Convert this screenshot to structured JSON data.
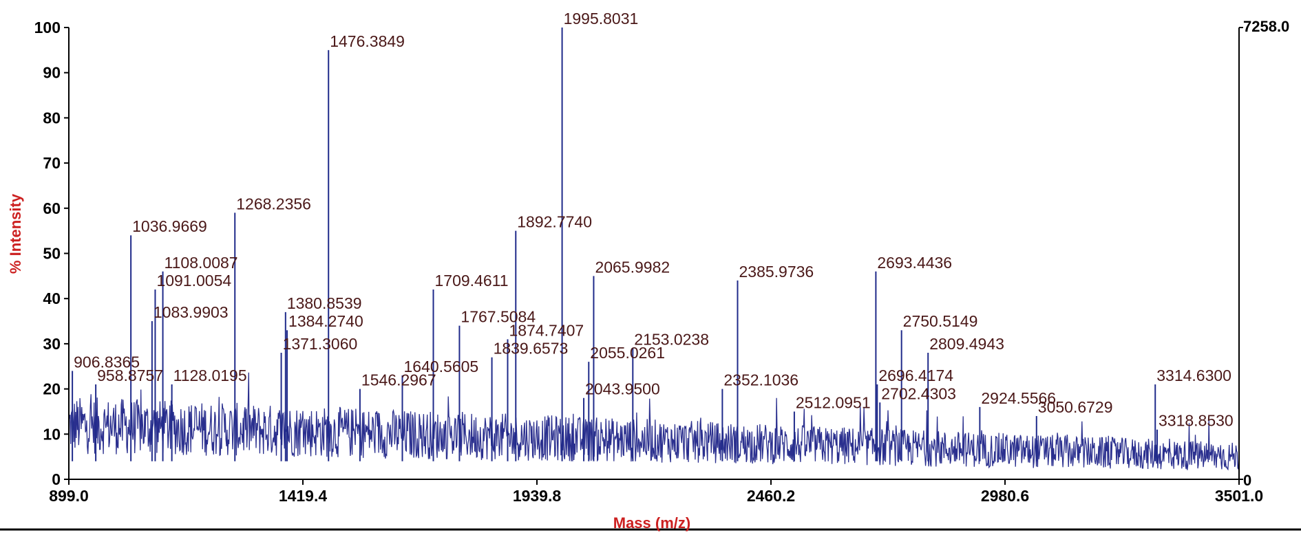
{
  "chart_data": {
    "type": "line",
    "title": "",
    "xlabel": "Mass (m/z)",
    "ylabel": "% Intensity",
    "xlim": [
      899.0,
      3501.0
    ],
    "ylim": [
      0,
      100
    ],
    "xticks": [
      "899.0",
      "1419.4",
      "1939.8",
      "2460.2",
      "2980.6",
      "3501.0"
    ],
    "yticks": [
      "0",
      "10",
      "20",
      "30",
      "40",
      "50",
      "60",
      "70",
      "80",
      "90",
      "100"
    ],
    "right_axis": {
      "top_label": "7258.0",
      "bottom_label": "0"
    },
    "series": [
      {
        "type": "peaks",
        "peaks": [
          {
            "x": 906.8365,
            "y": 24,
            "label": "906.8365"
          },
          {
            "x": 958.8757,
            "y": 21,
            "label": "958.8757"
          },
          {
            "x": 1036.9669,
            "y": 54,
            "label": "1036.9669"
          },
          {
            "x": 1083.9903,
            "y": 35,
            "label": "1083.9903"
          },
          {
            "x": 1091.0054,
            "y": 42,
            "label": "1091.0054"
          },
          {
            "x": 1108.0087,
            "y": 46,
            "label": "1108.0087"
          },
          {
            "x": 1128.0195,
            "y": 21,
            "label": "1128.0195"
          },
          {
            "x": 1268.2356,
            "y": 59,
            "label": "1268.2356"
          },
          {
            "x": 1371.306,
            "y": 28,
            "label": "1371.3060"
          },
          {
            "x": 1380.8539,
            "y": 37,
            "label": "1380.8539"
          },
          {
            "x": 1384.274,
            "y": 33,
            "label": "1384.2740"
          },
          {
            "x": 1476.3849,
            "y": 95,
            "label": "1476.3849"
          },
          {
            "x": 1546.2967,
            "y": 20,
            "label": "1546.2967"
          },
          {
            "x": 1640.5605,
            "y": 23,
            "label": "1640.5605"
          },
          {
            "x": 1709.4611,
            "y": 42,
            "label": "1709.4611"
          },
          {
            "x": 1767.5084,
            "y": 34,
            "label": "1767.5084"
          },
          {
            "x": 1839.6573,
            "y": 27,
            "label": "1839.6573"
          },
          {
            "x": 1874.7407,
            "y": 31,
            "label": "1874.7407"
          },
          {
            "x": 1892.774,
            "y": 55,
            "label": "1892.7740"
          },
          {
            "x": 1995.8031,
            "y": 100,
            "label": "1995.8031"
          },
          {
            "x": 2043.95,
            "y": 18,
            "label": "2043.9500"
          },
          {
            "x": 2055.0261,
            "y": 26,
            "label": "2055.0261"
          },
          {
            "x": 2065.9982,
            "y": 45,
            "label": "2065.9982"
          },
          {
            "x": 2153.0238,
            "y": 29,
            "label": "2153.0238"
          },
          {
            "x": 2352.1036,
            "y": 20,
            "label": "2352.1036"
          },
          {
            "x": 2385.9736,
            "y": 44,
            "label": "2385.9736"
          },
          {
            "x": 2512.0951,
            "y": 15,
            "label": "2512.0951"
          },
          {
            "x": 2693.4436,
            "y": 46,
            "label": "2693.4436"
          },
          {
            "x": 2696.4174,
            "y": 21,
            "label": "2696.4174"
          },
          {
            "x": 2702.4303,
            "y": 17,
            "label": "2702.4303"
          },
          {
            "x": 2750.5149,
            "y": 33,
            "label": "2750.5149"
          },
          {
            "x": 2809.4943,
            "y": 28,
            "label": "2809.4943"
          },
          {
            "x": 2924.5566,
            "y": 16,
            "label": "2924.5566"
          },
          {
            "x": 3050.6729,
            "y": 14,
            "label": "3050.6729"
          },
          {
            "x": 3314.63,
            "y": 21,
            "label": "3314.6300"
          },
          {
            "x": 3318.853,
            "y": 11,
            "label": "3318.8530"
          }
        ]
      }
    ]
  }
}
